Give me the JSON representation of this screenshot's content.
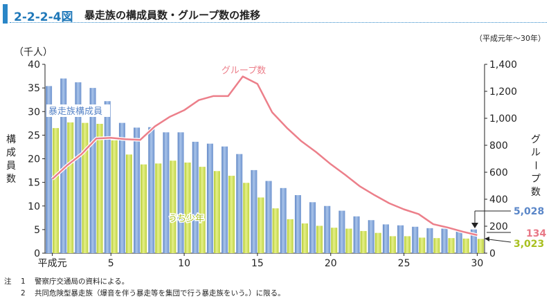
{
  "header": {
    "figure_number": "2-2-2-4図",
    "title": "暴走族の構成員数・グループ数の推移",
    "period": "（平成元年～30年）"
  },
  "chart_data": {
    "type": "bar",
    "x": [
      1,
      2,
      3,
      4,
      5,
      6,
      7,
      8,
      9,
      10,
      11,
      12,
      13,
      14,
      15,
      16,
      17,
      18,
      19,
      20,
      21,
      22,
      23,
      24,
      25,
      26,
      27,
      28,
      29,
      30
    ],
    "x_tick_labels": [
      "平成元",
      "5",
      "10",
      "15",
      "20",
      "25",
      "30"
    ],
    "x_tick_values": [
      1,
      5,
      10,
      15,
      20,
      25,
      30
    ],
    "y_left": {
      "label": "構成員数",
      "unit": "（千人）",
      "range": [
        0,
        40
      ],
      "ticks": [
        "0",
        "5",
        "10",
        "15",
        "20",
        "25",
        "30",
        "35",
        "40"
      ]
    },
    "y_right": {
      "label": "グループ数",
      "range": [
        0,
        1400
      ],
      "ticks": [
        "0",
        "200",
        "400",
        "600",
        "800",
        "1,000",
        "1,200",
        "1,400"
      ]
    },
    "series": [
      {
        "name": "暴走族構成員",
        "type": "bar",
        "axis": "left",
        "color": "#7ea3d8",
        "values": [
          35.4,
          37.0,
          36.2,
          35.0,
          32.2,
          27.6,
          26.6,
          26.7,
          25.6,
          25.6,
          23.6,
          23.2,
          22.6,
          21.0,
          17.6,
          15.3,
          13.8,
          12.3,
          10.8,
          10.0,
          9.0,
          7.8,
          7.0,
          6.1,
          5.9,
          5.6,
          5.3,
          5.2,
          4.6,
          5.028
        ]
      },
      {
        "name": "うち少年",
        "type": "bar",
        "axis": "left",
        "color": "#c8dd55",
        "values": [
          26.5,
          27.7,
          27.6,
          27.4,
          23.9,
          20.9,
          18.8,
          19.0,
          19.6,
          19.2,
          18.3,
          17.4,
          16.4,
          14.9,
          11.8,
          9.5,
          7.2,
          6.3,
          5.8,
          5.4,
          5.2,
          4.7,
          4.3,
          3.6,
          3.6,
          3.3,
          3.2,
          3.2,
          3.1,
          3.023
        ]
      },
      {
        "name": "グループ数",
        "type": "line",
        "axis": "right",
        "color": "#ec7f8a",
        "values": [
          550,
          650,
          735,
          850,
          855,
          845,
          840,
          940,
          1010,
          1060,
          1135,
          1165,
          1165,
          1310,
          1255,
          1045,
          930,
          830,
          750,
          660,
          580,
          495,
          430,
          370,
          325,
          290,
          215,
          190,
          160,
          134
        ]
      }
    ],
    "end_labels": {
      "members": "5,028",
      "groups": "134",
      "juveniles": "3,023"
    },
    "grid": false
  },
  "notes": [
    {
      "mark": "注",
      "num": "1",
      "text": "警察庁交通局の資料による。"
    },
    {
      "mark": "",
      "num": "2",
      "text": "共同危険型暴走族（爆音を伴う暴走等を集団で行う暴走族をいう。）に限る。"
    }
  ]
}
